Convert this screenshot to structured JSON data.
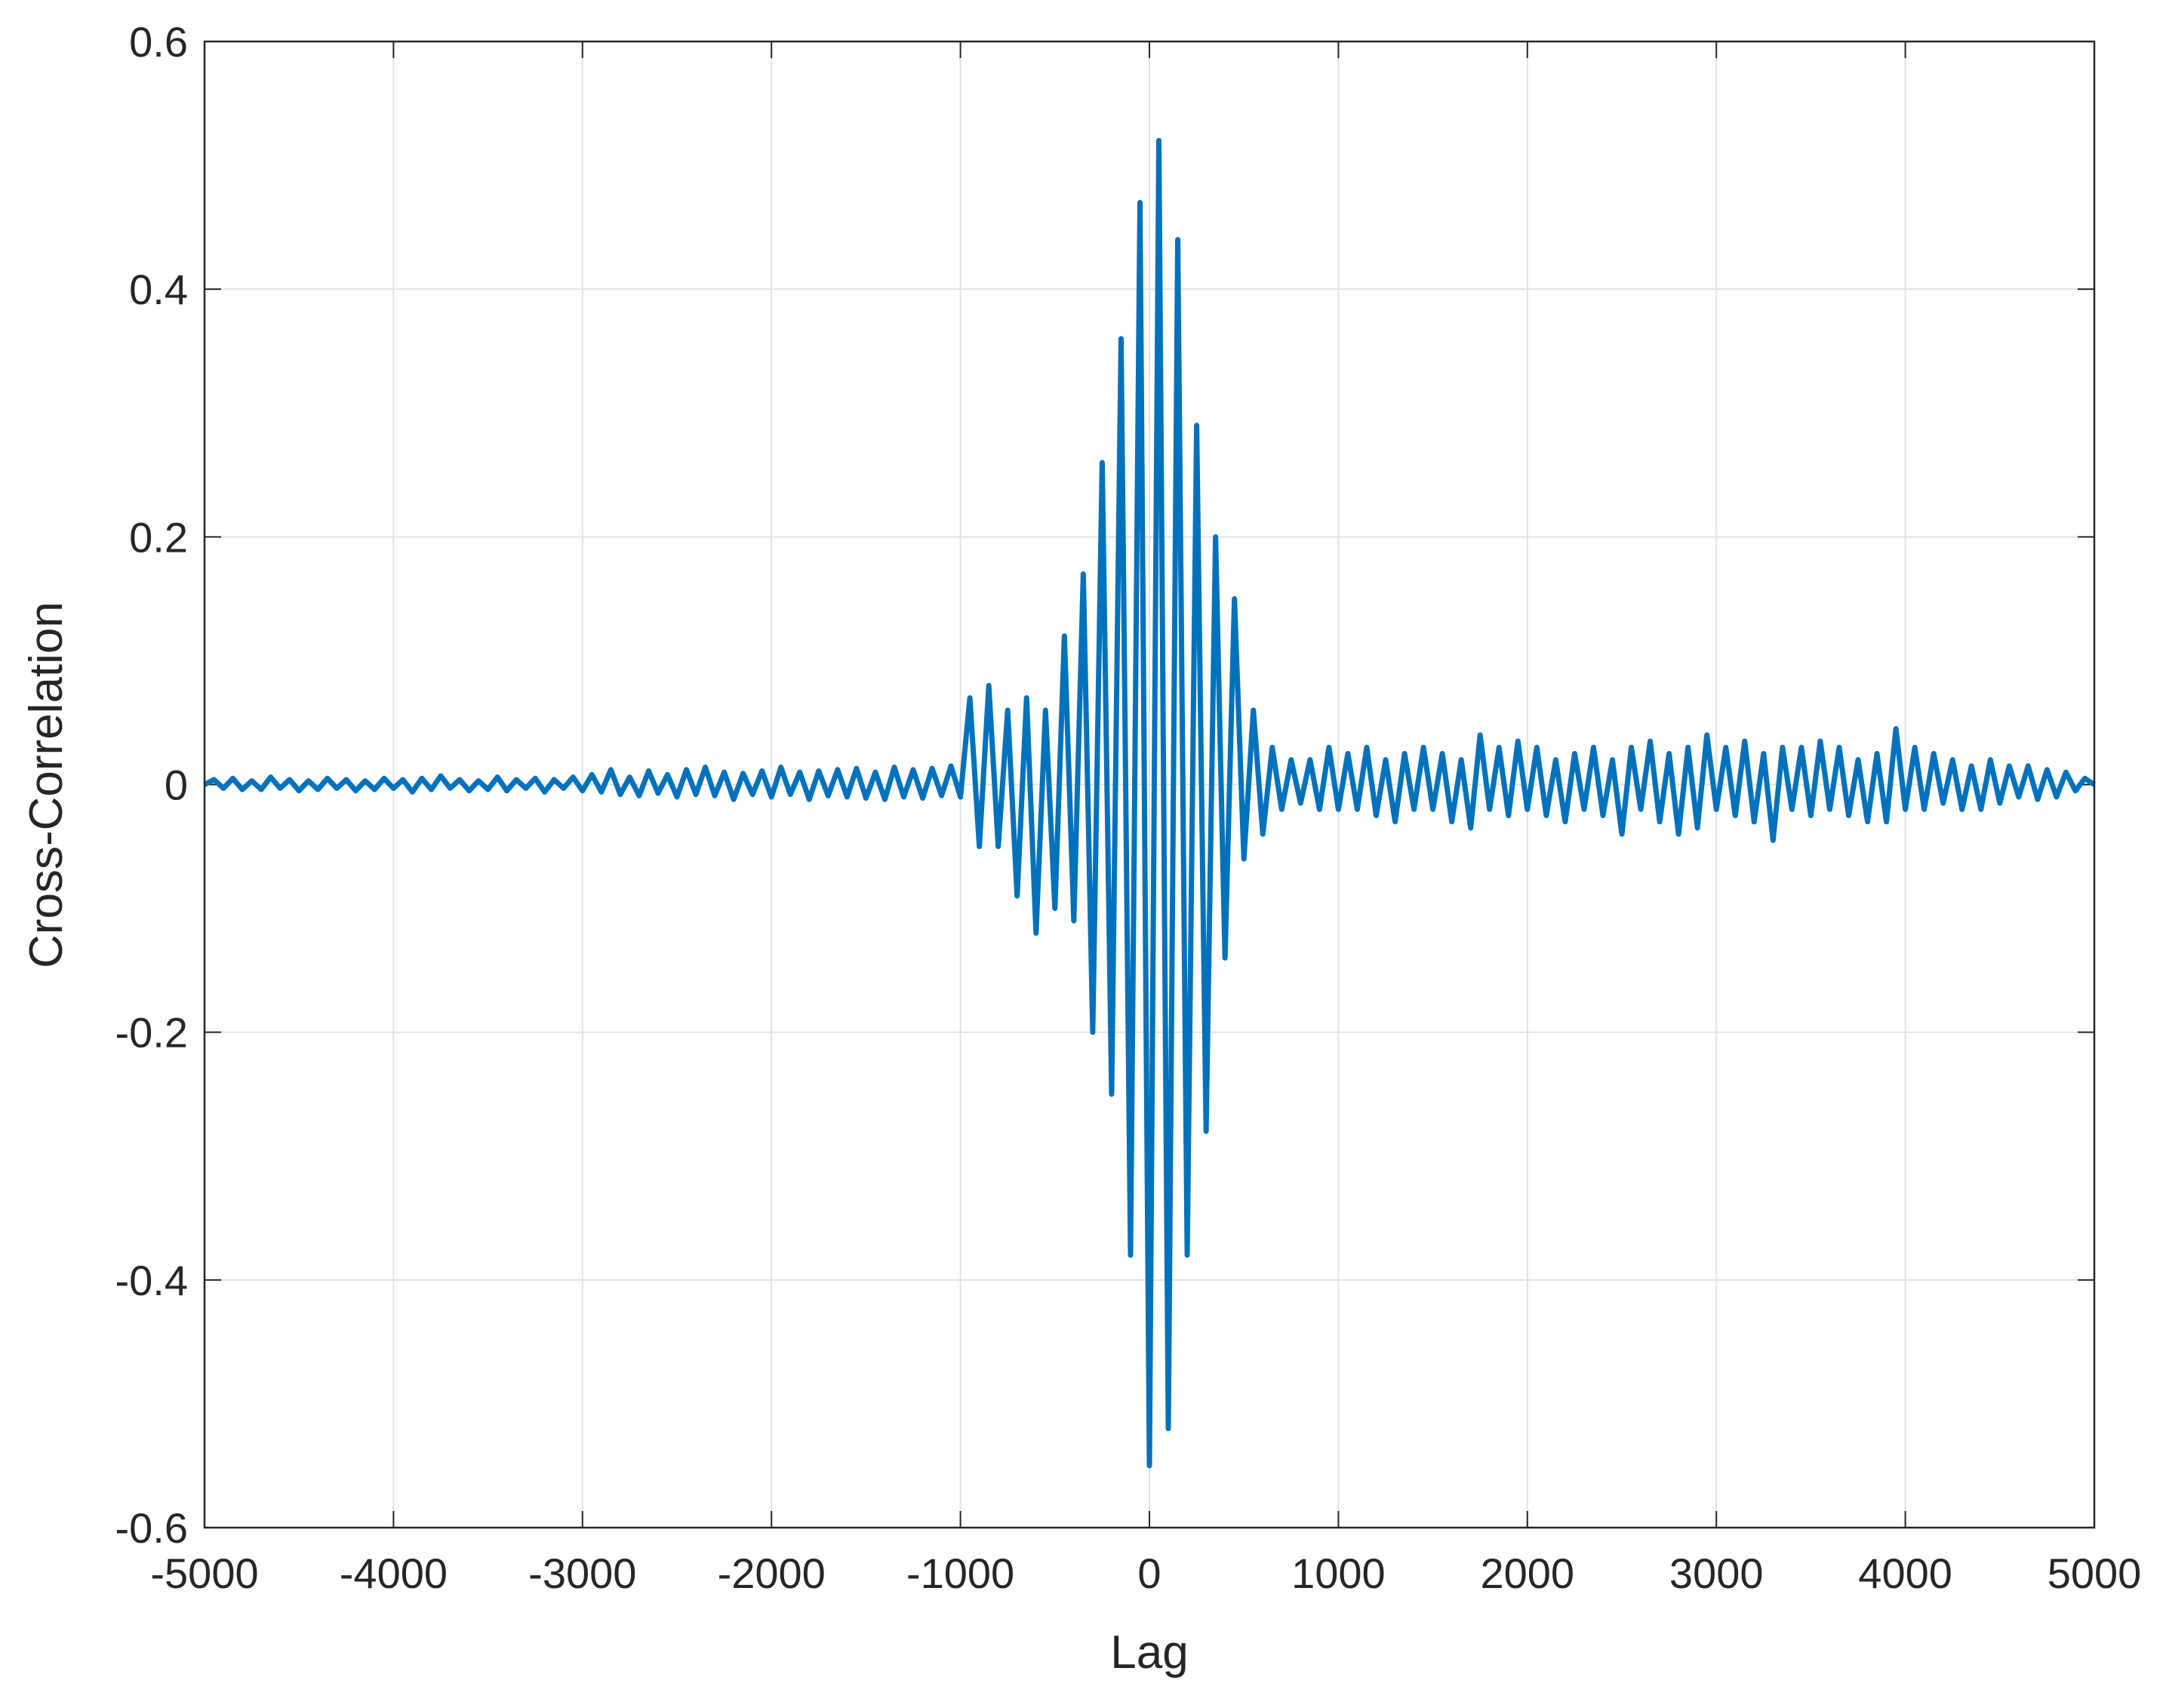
{
  "chart_data": {
    "type": "line",
    "x_label": "Lag",
    "y_label": "Cross-Correlation",
    "xlim": [
      -5000,
      5000
    ],
    "ylim": [
      -0.6,
      0.6
    ],
    "xticks": [
      -5000,
      -4000,
      -3000,
      -2000,
      -1000,
      0,
      1000,
      2000,
      3000,
      4000,
      5000
    ],
    "yticks": [
      -0.6,
      -0.4,
      -0.2,
      0,
      0.2,
      0.4,
      0.6
    ],
    "grid": true,
    "x": [
      -5000,
      -4950,
      -4900,
      -4850,
      -4800,
      -4750,
      -4700,
      -4650,
      -4600,
      -4550,
      -4500,
      -4450,
      -4400,
      -4350,
      -4300,
      -4250,
      -4200,
      -4150,
      -4100,
      -4050,
      -4000,
      -3950,
      -3900,
      -3850,
      -3800,
      -3750,
      -3700,
      -3650,
      -3600,
      -3550,
      -3500,
      -3450,
      -3400,
      -3350,
      -3300,
      -3250,
      -3200,
      -3150,
      -3100,
      -3050,
      -3000,
      -2950,
      -2900,
      -2850,
      -2800,
      -2750,
      -2700,
      -2650,
      -2600,
      -2550,
      -2500,
      -2450,
      -2400,
      -2350,
      -2300,
      -2250,
      -2200,
      -2150,
      -2100,
      -2050,
      -2000,
      -1950,
      -1900,
      -1850,
      -1800,
      -1750,
      -1700,
      -1650,
      -1600,
      -1550,
      -1500,
      -1450,
      -1400,
      -1350,
      -1300,
      -1250,
      -1200,
      -1150,
      -1100,
      -1050,
      -1000,
      -950,
      -900,
      -850,
      -800,
      -750,
      -700,
      -650,
      -600,
      -550,
      -500,
      -450,
      -400,
      -350,
      -300,
      -250,
      -200,
      -150,
      -100,
      -50,
      0,
      50,
      100,
      150,
      200,
      250,
      300,
      350,
      400,
      450,
      500,
      550,
      600,
      650,
      700,
      750,
      800,
      850,
      900,
      950,
      1000,
      1050,
      1100,
      1150,
      1200,
      1250,
      1300,
      1350,
      1400,
      1450,
      1500,
      1550,
      1600,
      1650,
      1700,
      1750,
      1800,
      1850,
      1900,
      1950,
      2000,
      2050,
      2100,
      2150,
      2200,
      2250,
      2300,
      2350,
      2400,
      2450,
      2500,
      2550,
      2600,
      2650,
      2700,
      2750,
      2800,
      2850,
      2900,
      2950,
      3000,
      3050,
      3100,
      3150,
      3200,
      3250,
      3300,
      3350,
      3400,
      3450,
      3500,
      3550,
      3600,
      3650,
      3700,
      3750,
      3800,
      3850,
      3900,
      3950,
      4000,
      4050,
      4100,
      4150,
      4200,
      4250,
      4300,
      4350,
      4400,
      4450,
      4500,
      4550,
      4600,
      4650,
      4700,
      4750,
      4800,
      4850,
      4900,
      4950,
      5000
    ],
    "series": [
      {
        "color": "#0072bd",
        "values": [
          0,
          0.004,
          -0.003,
          0.005,
          -0.004,
          0.003,
          -0.004,
          0.006,
          -0.003,
          0.004,
          -0.005,
          0.003,
          -0.004,
          0.005,
          -0.003,
          0.004,
          -0.005,
          0.003,
          -0.004,
          0.005,
          -0.003,
          0.004,
          -0.006,
          0.005,
          -0.004,
          0.007,
          -0.003,
          0.004,
          -0.005,
          0.003,
          -0.004,
          0.006,
          -0.005,
          0.004,
          -0.003,
          0.005,
          -0.006,
          0.004,
          -0.003,
          0.006,
          -0.005,
          0.008,
          -0.006,
          0.012,
          -0.008,
          0.006,
          -0.009,
          0.011,
          -0.007,
          0.008,
          -0.01,
          0.012,
          -0.008,
          0.014,
          -0.009,
          0.01,
          -0.012,
          0.009,
          -0.008,
          0.011,
          -0.01,
          0.014,
          -0.008,
          0.01,
          -0.012,
          0.011,
          -0.009,
          0.012,
          -0.01,
          0.013,
          -0.011,
          0.01,
          -0.012,
          0.014,
          -0.01,
          0.012,
          -0.011,
          0.013,
          -0.009,
          0.015,
          -0.01,
          0.07,
          -0.05,
          0.08,
          -0.05,
          0.06,
          -0.09,
          0.07,
          -0.12,
          0.06,
          -0.1,
          0.12,
          -0.11,
          0.17,
          -0.2,
          0.26,
          -0.25,
          0.36,
          -0.38,
          0.47,
          -0.55,
          0.52,
          -0.52,
          0.44,
          -0.38,
          0.29,
          -0.28,
          0.2,
          -0.14,
          0.15,
          -0.06,
          0.06,
          -0.04,
          0.03,
          -0.02,
          0.02,
          -0.015,
          0.02,
          -0.02,
          0.03,
          -0.02,
          0.025,
          -0.02,
          0.03,
          -0.025,
          0.02,
          -0.03,
          0.025,
          -0.02,
          0.03,
          -0.02,
          0.025,
          -0.03,
          0.02,
          -0.035,
          0.04,
          -0.02,
          0.03,
          -0.025,
          0.035,
          -0.02,
          0.03,
          -0.025,
          0.02,
          -0.03,
          0.025,
          -0.02,
          0.03,
          -0.025,
          0.02,
          -0.04,
          0.03,
          -0.02,
          0.035,
          -0.03,
          0.025,
          -0.04,
          0.03,
          -0.035,
          0.04,
          -0.02,
          0.03,
          -0.025,
          0.035,
          -0.03,
          0.025,
          -0.045,
          0.03,
          -0.02,
          0.03,
          -0.025,
          0.035,
          -0.02,
          0.03,
          -0.025,
          0.02,
          -0.03,
          0.025,
          -0.03,
          0.045,
          -0.02,
          0.03,
          -0.02,
          0.025,
          -0.015,
          0.02,
          -0.02,
          0.015,
          -0.02,
          0.02,
          -0.015,
          0.015,
          -0.01,
          0.015,
          -0.012,
          0.012,
          -0.01,
          0.01,
          -0.005,
          0.005,
          0
        ]
      }
    ]
  }
}
